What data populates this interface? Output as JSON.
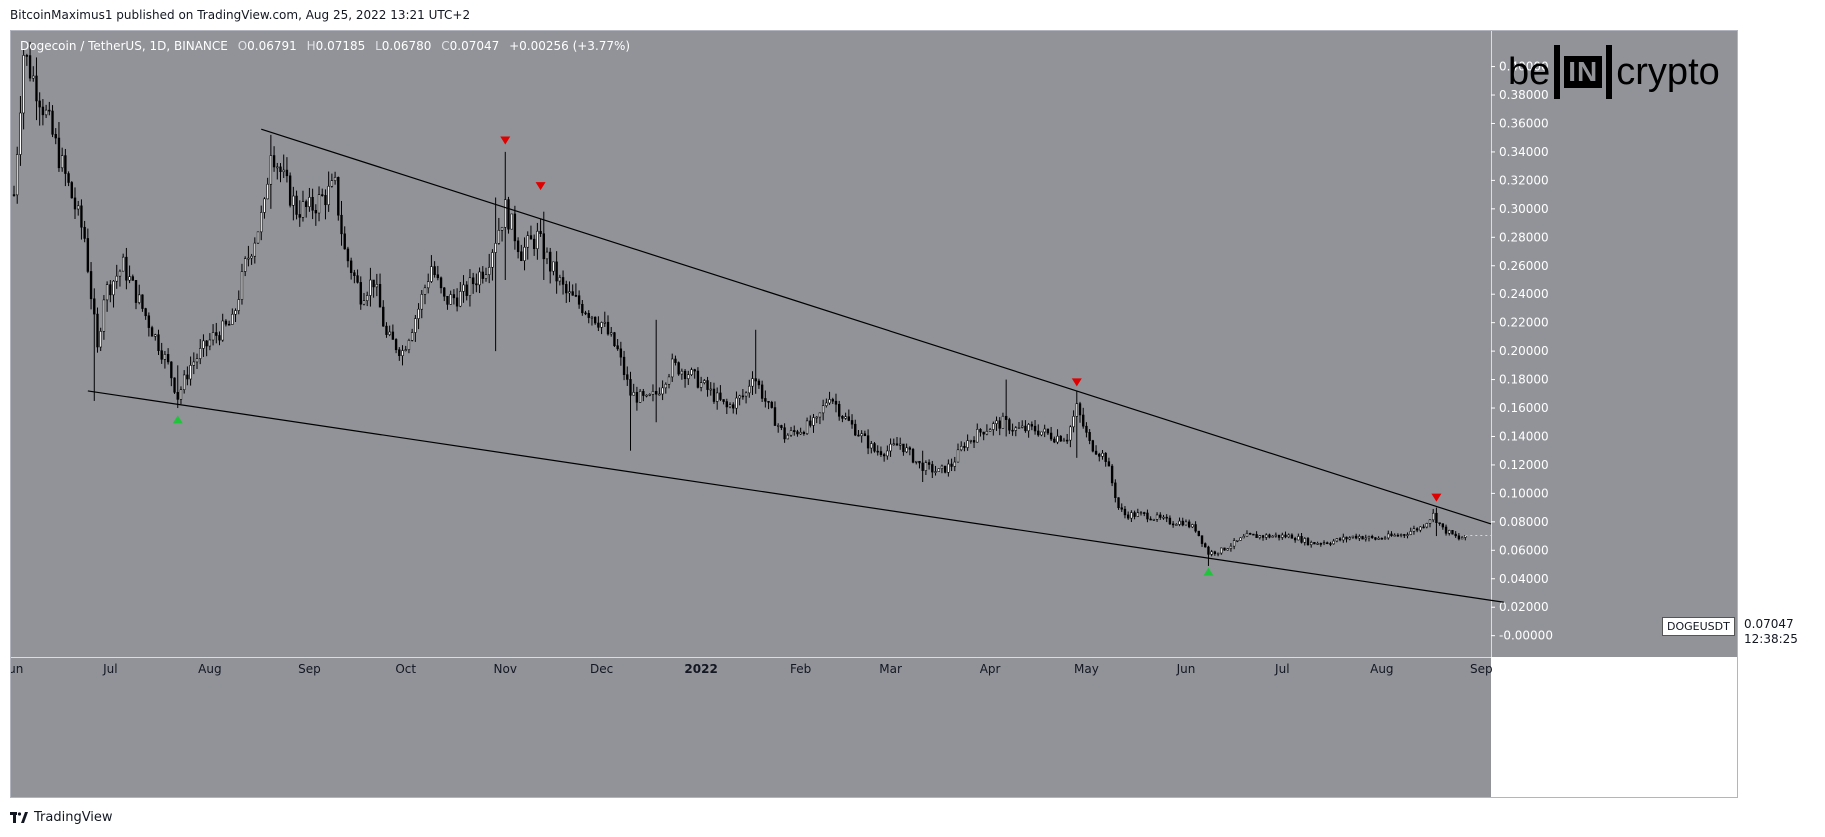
{
  "publish_line": "BitcoinMaximus1 published on TradingView.com, Aug 25, 2022 13:21 UTC+2",
  "legend": {
    "pair": "Dogecoin / TetherUS, 1D, BINANCE",
    "open_label": "O",
    "open": "0.06791",
    "high_label": "H",
    "high": "0.07185",
    "low_label": "L",
    "low": "0.06780",
    "close_label": "C",
    "close": "0.07047",
    "change": "+0.00256 (+3.77%)"
  },
  "logo": {
    "left": "be",
    "box": "IN",
    "right": "crypto"
  },
  "axis_currency": "USDT",
  "price_badge": {
    "symbol": "DOGEUSDT",
    "price": "0.07047",
    "countdown": "12:38:25"
  },
  "footer": {
    "brand": "TradingView"
  },
  "colors": {
    "plot_bg": "#919398",
    "candle": "#000000",
    "marker_up": "#22c33c",
    "marker_down": "#e00000"
  },
  "chart_data": {
    "type": "candlestick",
    "title": "Dogecoin / TetherUS, 1D, BINANCE",
    "ylabel": "USDT",
    "ylim": [
      -0.015,
      0.425
    ],
    "y_ticks": [
      0.4,
      0.38,
      0.36,
      0.34,
      0.32,
      0.3,
      0.28,
      0.26,
      0.24,
      0.22,
      0.2,
      0.18,
      0.16,
      0.14,
      0.12,
      0.1,
      0.08,
      0.06,
      0.04,
      0.02,
      0.0
    ],
    "y_tick_labels": [
      "0.40000",
      "0.38000",
      "0.36000",
      "0.34000",
      "0.32000",
      "0.30000",
      "0.28000",
      "0.26000",
      "0.24000",
      "0.22000",
      "0.20000",
      "0.18000",
      "0.16000",
      "0.14000",
      "0.12000",
      "0.10000",
      "0.08000",
      "0.06000",
      "0.04000",
      "0.02000",
      "-0.00000"
    ],
    "x_range_days": [
      0,
      460
    ],
    "x_ticks": [
      {
        "day": 0,
        "label": "Jun"
      },
      {
        "day": 30,
        "label": "Jul"
      },
      {
        "day": 61,
        "label": "Aug"
      },
      {
        "day": 92,
        "label": "Sep"
      },
      {
        "day": 122,
        "label": "Oct"
      },
      {
        "day": 153,
        "label": "Nov"
      },
      {
        "day": 183,
        "label": "Dec"
      },
      {
        "day": 214,
        "label": "2022"
      },
      {
        "day": 245,
        "label": "Feb"
      },
      {
        "day": 273,
        "label": "Mar"
      },
      {
        "day": 304,
        "label": "Apr"
      },
      {
        "day": 334,
        "label": "May"
      },
      {
        "day": 365,
        "label": "Jun"
      },
      {
        "day": 395,
        "label": "Jul"
      },
      {
        "day": 426,
        "label": "Aug"
      },
      {
        "day": 457,
        "label": "Sep"
      }
    ],
    "close_anchors": [
      [
        0,
        0.31
      ],
      [
        3,
        0.41
      ],
      [
        8,
        0.38
      ],
      [
        15,
        0.33
      ],
      [
        22,
        0.28
      ],
      [
        26,
        0.2
      ],
      [
        28,
        0.24
      ],
      [
        34,
        0.26
      ],
      [
        42,
        0.22
      ],
      [
        48,
        0.19
      ],
      [
        51,
        0.168
      ],
      [
        55,
        0.19
      ],
      [
        62,
        0.21
      ],
      [
        68,
        0.22
      ],
      [
        72,
        0.26
      ],
      [
        78,
        0.3
      ],
      [
        80,
        0.345
      ],
      [
        84,
        0.32
      ],
      [
        88,
        0.3
      ],
      [
        92,
        0.3
      ],
      [
        100,
        0.315
      ],
      [
        103,
        0.27
      ],
      [
        108,
        0.24
      ],
      [
        112,
        0.25
      ],
      [
        116,
        0.21
      ],
      [
        121,
        0.2
      ],
      [
        126,
        0.23
      ],
      [
        130,
        0.26
      ],
      [
        134,
        0.235
      ],
      [
        140,
        0.24
      ],
      [
        147,
        0.26
      ],
      [
        150,
        0.28
      ],
      [
        153,
        0.3
      ],
      [
        158,
        0.27
      ],
      [
        163,
        0.28
      ],
      [
        167,
        0.26
      ],
      [
        172,
        0.24
      ],
      [
        178,
        0.23
      ],
      [
        183,
        0.22
      ],
      [
        188,
        0.2
      ],
      [
        192,
        0.17
      ],
      [
        197,
        0.165
      ],
      [
        200,
        0.17
      ],
      [
        205,
        0.19
      ],
      [
        210,
        0.185
      ],
      [
        215,
        0.175
      ],
      [
        222,
        0.16
      ],
      [
        228,
        0.17
      ],
      [
        230,
        0.185
      ],
      [
        235,
        0.16
      ],
      [
        240,
        0.14
      ],
      [
        245,
        0.145
      ],
      [
        250,
        0.15
      ],
      [
        254,
        0.17
      ],
      [
        258,
        0.155
      ],
      [
        262,
        0.145
      ],
      [
        268,
        0.13
      ],
      [
        272,
        0.13
      ],
      [
        276,
        0.135
      ],
      [
        282,
        0.12
      ],
      [
        288,
        0.115
      ],
      [
        292,
        0.12
      ],
      [
        296,
        0.135
      ],
      [
        302,
        0.145
      ],
      [
        308,
        0.15
      ],
      [
        312,
        0.145
      ],
      [
        318,
        0.145
      ],
      [
        324,
        0.14
      ],
      [
        328,
        0.14
      ],
      [
        331,
        0.16
      ],
      [
        335,
        0.135
      ],
      [
        340,
        0.125
      ],
      [
        344,
        0.09
      ],
      [
        346,
        0.085
      ],
      [
        352,
        0.085
      ],
      [
        360,
        0.08
      ],
      [
        364,
        0.08
      ],
      [
        368,
        0.075
      ],
      [
        372,
        0.058
      ],
      [
        376,
        0.06
      ],
      [
        380,
        0.065
      ],
      [
        384,
        0.07
      ],
      [
        390,
        0.07
      ],
      [
        398,
        0.07
      ],
      [
        404,
        0.065
      ],
      [
        410,
        0.066
      ],
      [
        418,
        0.07
      ],
      [
        424,
        0.068
      ],
      [
        432,
        0.071
      ],
      [
        438,
        0.076
      ],
      [
        442,
        0.085
      ],
      [
        445,
        0.075
      ],
      [
        450,
        0.068
      ],
      [
        452,
        0.0705
      ]
    ],
    "last_day": 452,
    "last_close": 0.07047,
    "wicks": [
      {
        "day": 25,
        "high": 0.22,
        "low": 0.165
      },
      {
        "day": 51,
        "high": 0.19,
        "low": 0.16
      },
      {
        "day": 80,
        "high": 0.352,
        "low": 0.3
      },
      {
        "day": 150,
        "high": 0.308,
        "low": 0.2
      },
      {
        "day": 153,
        "high": 0.34,
        "low": 0.25
      },
      {
        "day": 165,
        "high": 0.298,
        "low": 0.25
      },
      {
        "day": 192,
        "high": 0.16,
        "low": 0.13
      },
      {
        "day": 200,
        "high": 0.222,
        "low": 0.15
      },
      {
        "day": 231,
        "high": 0.215,
        "low": 0.17
      },
      {
        "day": 283,
        "high": 0.13,
        "low": 0.108
      },
      {
        "day": 309,
        "high": 0.18,
        "low": 0.14
      },
      {
        "day": 331,
        "high": 0.172,
        "low": 0.125
      },
      {
        "day": 372,
        "high": 0.063,
        "low": 0.049
      },
      {
        "day": 443,
        "high": 0.09,
        "low": 0.07
      }
    ],
    "trendlines": [
      {
        "name": "descending-resistance",
        "from": {
          "day": 77,
          "price": 0.356
        },
        "to": {
          "day": 460,
          "price": 0.0785
        }
      },
      {
        "name": "descending-support",
        "from": {
          "day": 23,
          "price": 0.172
        },
        "to": {
          "day": 464,
          "price": 0.0235
        }
      }
    ],
    "markers": [
      {
        "type": "up",
        "day": 51,
        "price": 0.152
      },
      {
        "type": "down",
        "day": 153,
        "price": 0.348
      },
      {
        "type": "down",
        "day": 164,
        "price": 0.316
      },
      {
        "type": "down",
        "day": 331,
        "price": 0.178
      },
      {
        "type": "up",
        "day": 372,
        "price": 0.045
      },
      {
        "type": "down",
        "day": 443,
        "price": 0.097
      }
    ]
  }
}
